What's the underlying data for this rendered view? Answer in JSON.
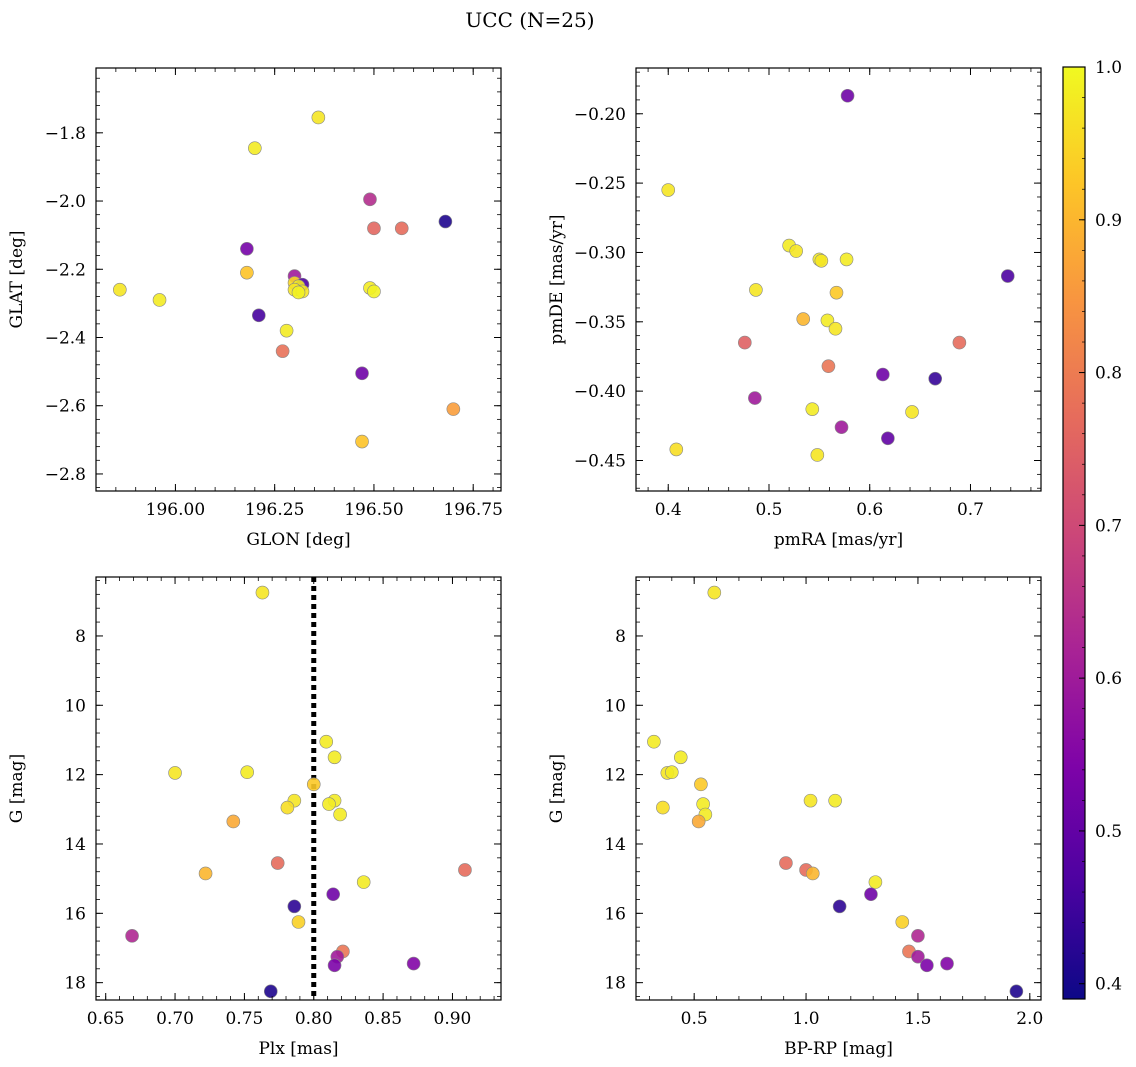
{
  "figure": {
    "title": "UCC (N=25)"
  },
  "colorbar": {
    "colormap": "plasma",
    "range": [
      0.39,
      1.0
    ],
    "ticks": [
      0.4,
      0.5,
      0.6,
      0.7,
      0.8,
      0.9,
      1.0
    ],
    "tick_labels": [
      "0.4",
      "0.5",
      "0.6",
      "0.7",
      "0.8",
      "0.9",
      "1.0"
    ]
  },
  "chart_data": [
    {
      "type": "scatter",
      "title": "",
      "xlabel": "GLON [deg]",
      "ylabel": "GLAT [deg]",
      "xlim": [
        195.8,
        196.82
      ],
      "ylim": [
        -2.85,
        -1.61
      ],
      "y_inverted": false,
      "xticks": [
        195.75,
        196.0,
        196.25,
        196.5,
        196.75
      ],
      "xtick_labels": [
        "195.75",
        "196.00",
        "196.25",
        "196.50",
        "196.75"
      ],
      "yticks": [
        -1.8,
        -2.0,
        -2.2,
        -2.4,
        -2.6,
        -2.8
      ],
      "ytick_labels": [
        "−1.8",
        "−2.0",
        "−2.2",
        "−2.4",
        "−2.6",
        "−2.8"
      ],
      "points": [
        {
          "x": 196.36,
          "y": -1.755,
          "c": 0.97
        },
        {
          "x": 196.2,
          "y": -1.845,
          "c": 0.98
        },
        {
          "x": 196.49,
          "y": -1.995,
          "c": 0.64
        },
        {
          "x": 196.68,
          "y": -2.06,
          "c": 0.41
        },
        {
          "x": 196.5,
          "y": -2.08,
          "c": 0.76
        },
        {
          "x": 196.57,
          "y": -2.08,
          "c": 0.77
        },
        {
          "x": 196.18,
          "y": -2.14,
          "c": 0.53
        },
        {
          "x": 196.18,
          "y": -2.21,
          "c": 0.92
        },
        {
          "x": 196.3,
          "y": -2.22,
          "c": 0.6
        },
        {
          "x": 196.3,
          "y": -2.24,
          "c": 0.95
        },
        {
          "x": 196.32,
          "y": -2.245,
          "c": 0.47
        },
        {
          "x": 196.31,
          "y": -2.25,
          "c": 0.98
        },
        {
          "x": 196.3,
          "y": -2.26,
          "c": 0.97
        },
        {
          "x": 196.32,
          "y": -2.265,
          "c": 0.97
        },
        {
          "x": 196.31,
          "y": -2.268,
          "c": 0.99
        },
        {
          "x": 195.86,
          "y": -2.26,
          "c": 0.97
        },
        {
          "x": 196.49,
          "y": -2.255,
          "c": 0.98
        },
        {
          "x": 196.5,
          "y": -2.265,
          "c": 0.99
        },
        {
          "x": 195.96,
          "y": -2.29,
          "c": 0.98
        },
        {
          "x": 196.21,
          "y": -2.335,
          "c": 0.46
        },
        {
          "x": 196.28,
          "y": -2.38,
          "c": 0.98
        },
        {
          "x": 196.27,
          "y": -2.44,
          "c": 0.78
        },
        {
          "x": 196.47,
          "y": -2.505,
          "c": 0.52
        },
        {
          "x": 196.7,
          "y": -2.61,
          "c": 0.86
        },
        {
          "x": 196.47,
          "y": -2.705,
          "c": 0.92
        }
      ]
    },
    {
      "type": "scatter",
      "title": "",
      "xlabel": "pmRA [mas/yr]",
      "ylabel": "pmDE [mas/yr]",
      "xlim": [
        0.368,
        0.77
      ],
      "ylim": [
        -0.472,
        -0.167
      ],
      "y_inverted": false,
      "xticks": [
        0.4,
        0.5,
        0.6,
        0.7
      ],
      "xtick_labels": [
        "0.4",
        "0.5",
        "0.6",
        "0.7"
      ],
      "yticks": [
        -0.2,
        -0.25,
        -0.3,
        -0.35,
        -0.4,
        -0.45
      ],
      "ytick_labels": [
        "−0.20",
        "−0.25",
        "−0.30",
        "−0.35",
        "−0.40",
        "−0.45"
      ],
      "points": [
        {
          "x": 0.578,
          "y": -0.187,
          "c": 0.52
        },
        {
          "x": 0.4,
          "y": -0.255,
          "c": 0.97
        },
        {
          "x": 0.52,
          "y": -0.295,
          "c": 0.98
        },
        {
          "x": 0.527,
          "y": -0.299,
          "c": 0.97
        },
        {
          "x": 0.55,
          "y": -0.305,
          "c": 0.98
        },
        {
          "x": 0.552,
          "y": -0.306,
          "c": 0.97
        },
        {
          "x": 0.577,
          "y": -0.305,
          "c": 0.98
        },
        {
          "x": 0.737,
          "y": -0.317,
          "c": 0.47
        },
        {
          "x": 0.487,
          "y": -0.327,
          "c": 0.97
        },
        {
          "x": 0.567,
          "y": -0.329,
          "c": 0.93
        },
        {
          "x": 0.534,
          "y": -0.348,
          "c": 0.9
        },
        {
          "x": 0.558,
          "y": -0.349,
          "c": 0.98
        },
        {
          "x": 0.566,
          "y": -0.355,
          "c": 0.97
        },
        {
          "x": 0.476,
          "y": -0.365,
          "c": 0.75
        },
        {
          "x": 0.689,
          "y": -0.365,
          "c": 0.77
        },
        {
          "x": 0.559,
          "y": -0.382,
          "c": 0.79
        },
        {
          "x": 0.613,
          "y": -0.388,
          "c": 0.52
        },
        {
          "x": 0.665,
          "y": -0.391,
          "c": 0.44
        },
        {
          "x": 0.486,
          "y": -0.405,
          "c": 0.6
        },
        {
          "x": 0.543,
          "y": -0.413,
          "c": 0.98
        },
        {
          "x": 0.642,
          "y": -0.415,
          "c": 0.97
        },
        {
          "x": 0.572,
          "y": -0.426,
          "c": 0.6
        },
        {
          "x": 0.618,
          "y": -0.434,
          "c": 0.5
        },
        {
          "x": 0.408,
          "y": -0.442,
          "c": 0.96
        },
        {
          "x": 0.548,
          "y": -0.446,
          "c": 0.97
        }
      ]
    },
    {
      "type": "scatter",
      "title": "",
      "xlabel": "Plx [mas]",
      "ylabel": "G [mag]",
      "xlim": [
        0.643,
        0.935
      ],
      "ylim": [
        18.5,
        6.3
      ],
      "y_inverted": true,
      "xticks": [
        0.65,
        0.7,
        0.75,
        0.8,
        0.85,
        0.9
      ],
      "xtick_labels": [
        "0.65",
        "0.70",
        "0.75",
        "0.80",
        "0.85",
        "0.90"
      ],
      "yticks": [
        8,
        10,
        12,
        14,
        16,
        18
      ],
      "ytick_labels": [
        "8",
        "10",
        "12",
        "14",
        "16",
        "18"
      ],
      "vline": {
        "x": 0.8,
        "style": "dotted"
      },
      "points": [
        {
          "x": 0.763,
          "y": 6.75,
          "c": 0.97
        },
        {
          "x": 0.809,
          "y": 11.05,
          "c": 0.98
        },
        {
          "x": 0.815,
          "y": 11.5,
          "c": 0.98
        },
        {
          "x": 0.7,
          "y": 11.95,
          "c": 0.97
        },
        {
          "x": 0.752,
          "y": 11.93,
          "c": 0.98
        },
        {
          "x": 0.8,
          "y": 12.28,
          "c": 0.93
        },
        {
          "x": 0.786,
          "y": 12.75,
          "c": 0.97
        },
        {
          "x": 0.815,
          "y": 12.75,
          "c": 0.98
        },
        {
          "x": 0.811,
          "y": 12.85,
          "c": 0.98
        },
        {
          "x": 0.781,
          "y": 12.95,
          "c": 0.96
        },
        {
          "x": 0.819,
          "y": 13.15,
          "c": 0.98
        },
        {
          "x": 0.742,
          "y": 13.35,
          "c": 0.88
        },
        {
          "x": 0.774,
          "y": 14.55,
          "c": 0.77
        },
        {
          "x": 0.909,
          "y": 14.75,
          "c": 0.77
        },
        {
          "x": 0.722,
          "y": 14.85,
          "c": 0.9
        },
        {
          "x": 0.836,
          "y": 15.1,
          "c": 0.98
        },
        {
          "x": 0.814,
          "y": 15.45,
          "c": 0.52
        },
        {
          "x": 0.786,
          "y": 15.8,
          "c": 0.43
        },
        {
          "x": 0.789,
          "y": 16.25,
          "c": 0.94
        },
        {
          "x": 0.669,
          "y": 16.65,
          "c": 0.63
        },
        {
          "x": 0.821,
          "y": 17.1,
          "c": 0.79
        },
        {
          "x": 0.817,
          "y": 17.25,
          "c": 0.6
        },
        {
          "x": 0.872,
          "y": 17.45,
          "c": 0.55
        },
        {
          "x": 0.815,
          "y": 17.5,
          "c": 0.54
        },
        {
          "x": 0.769,
          "y": 18.25,
          "c": 0.41
        }
      ]
    },
    {
      "type": "scatter",
      "title": "",
      "xlabel": "BP-RP [mag]",
      "ylabel": "G [mag]",
      "xlim": [
        0.24,
        2.05
      ],
      "ylim": [
        18.5,
        6.3
      ],
      "y_inverted": true,
      "xticks": [
        0.5,
        1.0,
        1.5,
        2.0
      ],
      "xtick_labels": [
        "0.5",
        "1.0",
        "1.5",
        "2.0"
      ],
      "yticks": [
        8,
        10,
        12,
        14,
        16,
        18
      ],
      "ytick_labels": [
        "8",
        "10",
        "12",
        "14",
        "16",
        "18"
      ],
      "points": [
        {
          "x": 0.59,
          "y": 6.75,
          "c": 0.97
        },
        {
          "x": 0.32,
          "y": 11.05,
          "c": 0.98
        },
        {
          "x": 0.44,
          "y": 11.5,
          "c": 0.98
        },
        {
          "x": 0.38,
          "y": 11.95,
          "c": 0.97
        },
        {
          "x": 0.4,
          "y": 11.93,
          "c": 0.98
        },
        {
          "x": 0.53,
          "y": 12.28,
          "c": 0.93
        },
        {
          "x": 1.02,
          "y": 12.75,
          "c": 0.97
        },
        {
          "x": 1.13,
          "y": 12.75,
          "c": 0.98
        },
        {
          "x": 0.54,
          "y": 12.85,
          "c": 0.98
        },
        {
          "x": 0.36,
          "y": 12.95,
          "c": 0.96
        },
        {
          "x": 0.55,
          "y": 13.15,
          "c": 0.98
        },
        {
          "x": 0.52,
          "y": 13.35,
          "c": 0.88
        },
        {
          "x": 0.91,
          "y": 14.55,
          "c": 0.77
        },
        {
          "x": 1.0,
          "y": 14.75,
          "c": 0.77
        },
        {
          "x": 1.03,
          "y": 14.85,
          "c": 0.9
        },
        {
          "x": 1.31,
          "y": 15.1,
          "c": 0.98
        },
        {
          "x": 1.29,
          "y": 15.45,
          "c": 0.52
        },
        {
          "x": 1.15,
          "y": 15.8,
          "c": 0.43
        },
        {
          "x": 1.43,
          "y": 16.25,
          "c": 0.94
        },
        {
          "x": 1.5,
          "y": 16.65,
          "c": 0.63
        },
        {
          "x": 1.46,
          "y": 17.1,
          "c": 0.79
        },
        {
          "x": 1.5,
          "y": 17.25,
          "c": 0.6
        },
        {
          "x": 1.63,
          "y": 17.45,
          "c": 0.55
        },
        {
          "x": 1.54,
          "y": 17.5,
          "c": 0.54
        },
        {
          "x": 1.94,
          "y": 18.25,
          "c": 0.41
        }
      ]
    }
  ]
}
